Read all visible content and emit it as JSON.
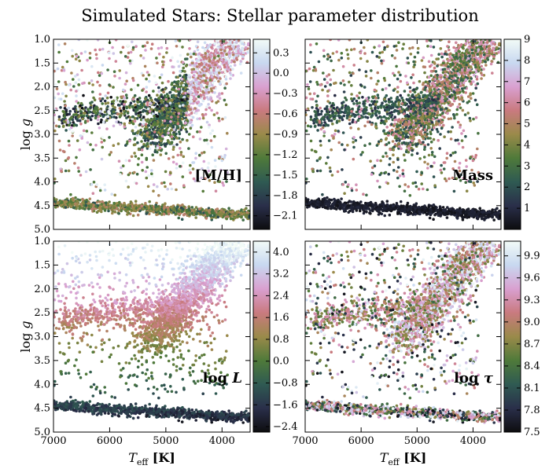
{
  "title": "Simulated Stars: Stellar parameter distribution",
  "colormap": [
    "#0d0d0f",
    "#2a2f4a",
    "#2f5a52",
    "#4f7a3a",
    "#9a8a4a",
    "#c97a7f",
    "#d9a0d0",
    "#c8d8f0",
    "#f2fbf7"
  ],
  "chart_data": [
    {
      "type": "scatter",
      "id": "mh",
      "panel_label": "[M/H]",
      "xlabel": "T_eff [K]",
      "ylabel": "log g",
      "xlim": [
        7000,
        3500
      ],
      "ylim": [
        5.0,
        1.0
      ],
      "x_ticks": [
        "7000",
        "6000",
        "5000",
        "4000"
      ],
      "y_ticks": [
        "1.0",
        "1.5",
        "2.0",
        "2.5",
        "3.0",
        "3.5",
        "4.0",
        "4.5",
        "5.0"
      ],
      "colorbar": {
        "min": -2.3,
        "max": 0.5,
        "ticks": [
          "0.3",
          "0.0",
          "−0.3",
          "−0.6",
          "−0.9",
          "−1.2",
          "−1.5",
          "−1.8",
          "−2.1"
        ]
      },
      "show_x_ticklabels": false,
      "show_ylabel": true
    },
    {
      "type": "scatter",
      "id": "mass",
      "panel_label": "Mass",
      "xlabel": "T_eff [K]",
      "ylabel": "log g",
      "xlim": [
        7000,
        3500
      ],
      "ylim": [
        5.0,
        1.0
      ],
      "colorbar": {
        "min": 0,
        "max": 9,
        "ticks": [
          "9",
          "8",
          "7",
          "6",
          "5",
          "4",
          "3",
          "2",
          "1"
        ]
      },
      "show_x_ticklabels": false,
      "show_ylabel": false
    },
    {
      "type": "scatter",
      "id": "logl",
      "panel_label": "log L",
      "xlabel": "T_eff [K]",
      "ylabel": "log g",
      "xlim": [
        7000,
        3500
      ],
      "ylim": [
        5.0,
        1.0
      ],
      "x_ticks": [
        "7000",
        "6000",
        "5000",
        "4000"
      ],
      "y_ticks": [
        "1.0",
        "1.5",
        "2.0",
        "2.5",
        "3.0",
        "3.5",
        "4.0",
        "4.5",
        "5.0"
      ],
      "colorbar": {
        "min": -2.6,
        "max": 4.4,
        "ticks": [
          "4.0",
          "3.2",
          "2.4",
          "1.6",
          "0.8",
          "0.0",
          "−0.8",
          "−1.6",
          "−2.4"
        ]
      },
      "show_x_ticklabels": true,
      "show_ylabel": true
    },
    {
      "type": "scatter",
      "id": "logtau",
      "panel_label": "log τ",
      "xlabel": "T_eff [K]",
      "ylabel": "log g",
      "xlim": [
        7000,
        3500
      ],
      "ylim": [
        5.0,
        1.0
      ],
      "x_ticks": [
        "7000",
        "6000",
        "5000",
        "4000"
      ],
      "colorbar": {
        "min": 7.5,
        "max": 10.1,
        "ticks": [
          "9.9",
          "9.6",
          "9.3",
          "9.0",
          "8.7",
          "8.4",
          "8.1",
          "7.8",
          "7.5"
        ]
      },
      "show_x_ticklabels": true,
      "show_ylabel": false
    }
  ]
}
